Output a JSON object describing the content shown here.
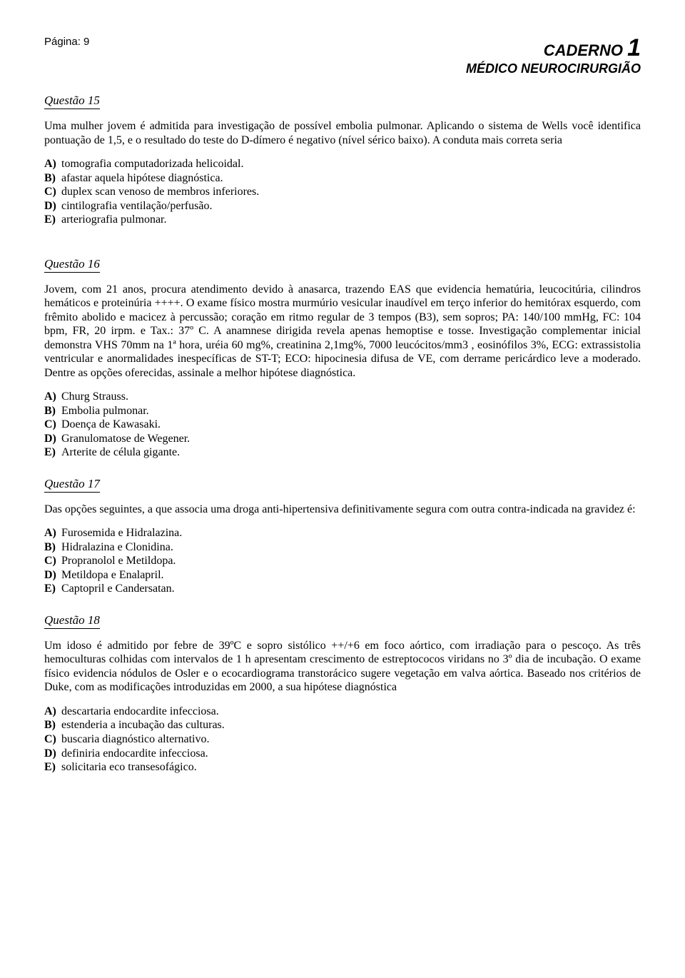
{
  "page_label": "Página: 9",
  "header_title_prefix": "CADERNO",
  "header_title_number": "1",
  "header_subtitle": "MÉDICO NEUROCIRURGIÃO",
  "questions": [
    {
      "title": "Questão 15",
      "body": "Uma mulher jovem é admitida para investigação de possível embolia pulmonar. Aplicando o sistema de Wells você identifica pontuação de 1,5, e o resultado do teste do D-dímero é negativo (nível sérico baixo). A conduta mais correta seria",
      "options": [
        {
          "letter": "A)",
          "text": "tomografia computadorizada helicoidal."
        },
        {
          "letter": "B)",
          "text": "afastar aquela hipótese diagnóstica."
        },
        {
          "letter": "C)",
          "text": "duplex scan venoso de membros inferiores."
        },
        {
          "letter": "D)",
          "text": "cintilografia ventilação/perfusão."
        },
        {
          "letter": "E)",
          "text": "arteriografia pulmonar."
        }
      ]
    },
    {
      "title": "Questão 16",
      "body": "Jovem, com 21 anos, procura atendimento devido à anasarca, trazendo EAS que evidencia hematúria, leucocitúria, cilindros hemáticos e proteinúria ++++. O exame físico mostra murmúrio vesicular inaudível em terço inferior do hemitórax esquerdo, com frêmito abolido e macicez à percussão; coração em ritmo regular de 3 tempos (B3), sem sopros; PA: 140/100 mmHg, FC: 104 bpm, FR, 20 irpm. e Tax.: 37º C. A anamnese dirigida revela apenas hemoptise e tosse. Investigação complementar inicial demonstra VHS 70mm na 1ª hora, uréia 60 mg%, creatinina 2,1mg%, 7000 leucócitos/mm3 , eosinófilos 3%, ECG: extrassistolia ventricular e anormalidades inespecíficas de ST-T; ECO: hipocinesia difusa de VE, com derrame pericárdico leve a moderado. Dentre as opções oferecidas, assinale a melhor hipótese diagnóstica.",
      "options": [
        {
          "letter": "A)",
          "text": "Churg Strauss."
        },
        {
          "letter": "B)",
          "text": "Embolia pulmonar."
        },
        {
          "letter": "C)",
          "text": "Doença de Kawasaki."
        },
        {
          "letter": "D)",
          "text": "Granulomatose de Wegener."
        },
        {
          "letter": "E)",
          "text": "Arterite de célula gigante."
        }
      ]
    },
    {
      "title": "Questão 17",
      "body": "Das opções seguintes, a que associa uma droga anti-hipertensiva definitivamente segura com outra contra-indicada na gravidez é:",
      "options": [
        {
          "letter": "A)",
          "text": "Furosemida e Hidralazina."
        },
        {
          "letter": "B)",
          "text": "Hidralazina e Clonidina."
        },
        {
          "letter": "C)",
          "text": "Propranolol e Metildopa."
        },
        {
          "letter": "D)",
          "text": "Metildopa e Enalapril."
        },
        {
          "letter": "E)",
          "text": "Captopril e Candersatan."
        }
      ]
    },
    {
      "title": "Questão 18",
      "body": "Um idoso é admitido por febre de 39ºC e sopro sistólico ++/+6 em foco aórtico, com irradiação para o pescoço. As três hemoculturas colhidas com intervalos de 1 h apresentam crescimento de estreptococos viridans no 3º dia de incubação. O exame físico evidencia nódulos de Osler e o ecocardiograma transtorácico sugere vegetação em valva aórtica. Baseado nos critérios de Duke, com as modificações introduzidas em 2000, a sua hipótese diagnóstica",
      "options": [
        {
          "letter": "A)",
          "text": "descartaria endocardite infecciosa."
        },
        {
          "letter": "B)",
          "text": "estenderia a incubação das culturas."
        },
        {
          "letter": "C)",
          "text": "buscaria diagnóstico alternativo."
        },
        {
          "letter": "D)",
          "text": "definiria endocardite infecciosa."
        },
        {
          "letter": "E)",
          "text": "solicitaria eco transesofágico."
        }
      ]
    }
  ]
}
